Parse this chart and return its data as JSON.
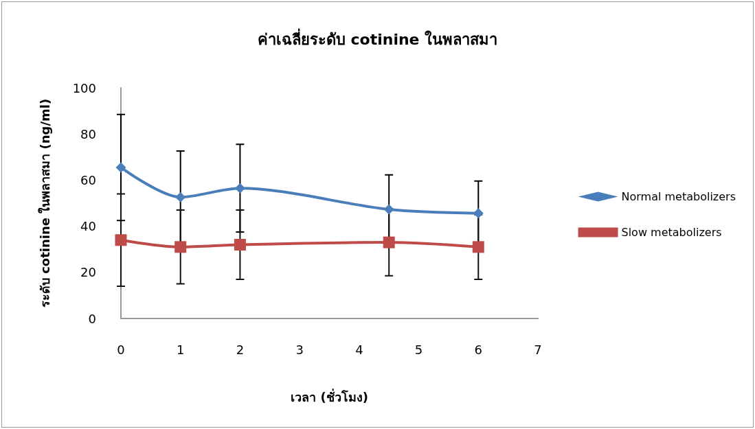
{
  "chart_data": {
    "type": "line",
    "title": "ค่าเฉลี่ยระดับ cotinine ในพลาสมา",
    "xlabel": "เวลา (ชั่วโมง)",
    "ylabel": "ระดับ cotinine ในพลาสมา (ng/ml)",
    "x": [
      0,
      1,
      2,
      4.5,
      6
    ],
    "series": [
      {
        "name": "Normal metabolizers",
        "color": "#4a7ebb",
        "marker": "diamond",
        "values": [
          65.5,
          52.6,
          56.5,
          47.3,
          45.6
        ],
        "errors": [
          23,
          20,
          19,
          15,
          14
        ]
      },
      {
        "name": "Slow metabolizers",
        "color": "#be4b48",
        "marker": "square",
        "values": [
          34,
          31,
          32,
          33,
          31
        ],
        "errors": [
          20,
          16,
          15,
          14.5,
          14
        ]
      }
    ],
    "xlim": [
      0,
      7
    ],
    "xticks": [
      0,
      1,
      2,
      3,
      4,
      5,
      6,
      7
    ],
    "ylim": [
      0,
      100
    ],
    "yticks": [
      0,
      20,
      40,
      60,
      80,
      100
    ],
    "grid": false,
    "legend": "right",
    "line_style": "solid"
  }
}
